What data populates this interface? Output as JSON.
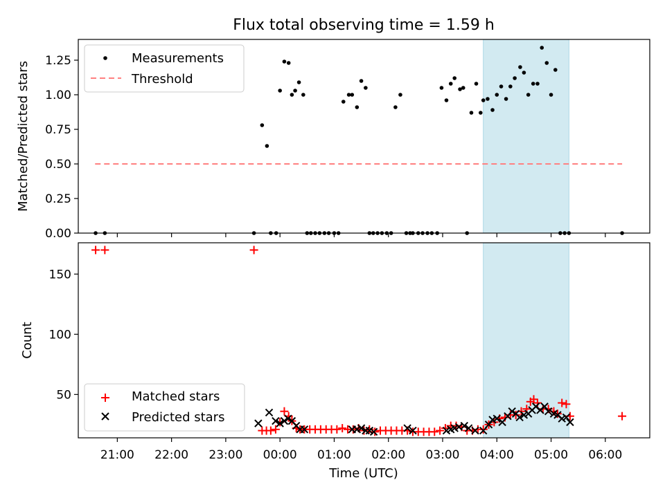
{
  "title": "Flux total observing time = 1.59 h",
  "colors": {
    "measure": "#000000",
    "threshold": "#ff8080",
    "matched": "#ff0000",
    "predicted": "#000000",
    "span": "#add8e6"
  },
  "chart_data": [
    {
      "type": "scatter",
      "ylabel": "Matched/Predicted stars",
      "ylim": [
        0,
        1.4
      ],
      "yticks": [
        0,
        0.25,
        0.5,
        0.75,
        1.0,
        1.25
      ],
      "ytick_labels": [
        "0.00",
        "0.25",
        "0.50",
        "0.75",
        "1.00",
        "1.25"
      ],
      "xlim": [
        20.28,
        30.82
      ],
      "highlight_span": [
        27.75,
        29.33
      ],
      "legend": {
        "location": "upper-left",
        "entries": [
          "Measurements",
          "Threshold"
        ]
      },
      "threshold": {
        "name": "Threshold",
        "x": [
          20.59,
          30.31
        ],
        "value": 0.5
      },
      "series": [
        {
          "name": "Measurements",
          "x": [
            20.6,
            20.77,
            23.52,
            23.67,
            23.83,
            23.76,
            23.93,
            24.0,
            24.08,
            24.16,
            24.22,
            24.28,
            24.35,
            24.43,
            24.5,
            24.57,
            24.65,
            24.73,
            24.82,
            24.9,
            25.0,
            25.08,
            25.17,
            25.27,
            25.33,
            25.42,
            25.5,
            25.58,
            25.65,
            25.72,
            25.8,
            25.88,
            25.97,
            26.05,
            26.13,
            26.22,
            26.33,
            26.4,
            26.45,
            26.55,
            26.63,
            26.72,
            26.8,
            26.9,
            26.98,
            27.07,
            27.15,
            27.22,
            27.32,
            27.38,
            27.45,
            27.53,
            27.62,
            27.7,
            27.75,
            27.83,
            27.92,
            28.0,
            28.08,
            28.17,
            28.25,
            28.33,
            28.43,
            28.5,
            28.58,
            28.67,
            28.75,
            28.83,
            28.92,
            29.0,
            29.08,
            29.17,
            29.25,
            29.33,
            30.31
          ],
          "y": [
            0,
            0,
            0,
            0.78,
            0,
            0.63,
            0,
            1.03,
            1.24,
            1.23,
            1.0,
            1.03,
            1.09,
            1.0,
            0,
            0,
            0,
            0,
            0,
            0,
            0,
            0,
            0.95,
            1.0,
            1.0,
            0.91,
            1.1,
            1.05,
            0,
            0,
            0,
            0,
            0,
            0,
            0.91,
            1.0,
            0,
            0,
            0,
            0,
            0,
            0,
            0,
            0,
            1.05,
            0.96,
            1.08,
            1.12,
            1.04,
            1.05,
            0,
            0.87,
            1.08,
            0.87,
            0.96,
            0.97,
            0.89,
            1.0,
            1.06,
            0.97,
            1.06,
            1.12,
            1.2,
            1.16,
            1.0,
            1.08,
            1.08,
            1.34,
            1.23,
            1.0,
            1.18,
            0,
            0,
            0,
            0
          ]
        }
      ]
    },
    {
      "type": "scatter",
      "xlabel": "Time (UTC)",
      "ylabel": "Count",
      "ylim": [
        14,
        176
      ],
      "yticks": [
        50,
        100,
        150
      ],
      "ytick_labels": [
        "50",
        "100",
        "150"
      ],
      "xlim": [
        20.28,
        30.82
      ],
      "xticks": [
        21,
        22,
        23,
        24,
        25,
        26,
        27,
        28,
        29,
        30
      ],
      "xtick_labels": [
        "21:00",
        "22:00",
        "23:00",
        "00:00",
        "01:00",
        "02:00",
        "03:00",
        "04:00",
        "05:00",
        "06:00"
      ],
      "highlight_span": [
        27.75,
        29.33
      ],
      "legend": {
        "location": "lower-left",
        "entries": [
          "Matched stars",
          "Predicted stars"
        ]
      },
      "series": [
        {
          "name": "Matched stars",
          "marker": "+",
          "x": [
            20.6,
            20.77,
            23.52,
            23.67,
            23.75,
            23.83,
            23.92,
            24.0,
            24.08,
            24.16,
            24.22,
            24.3,
            24.37,
            24.45,
            24.55,
            24.65,
            24.75,
            24.85,
            24.95,
            25.05,
            25.15,
            25.25,
            25.35,
            25.45,
            25.55,
            25.65,
            25.75,
            25.85,
            25.95,
            26.05,
            26.15,
            26.25,
            26.35,
            26.45,
            26.55,
            26.65,
            26.75,
            26.85,
            26.95,
            27.05,
            27.15,
            27.25,
            27.35,
            27.45,
            27.55,
            27.65,
            27.75,
            27.85,
            27.95,
            28.05,
            28.15,
            28.25,
            28.35,
            28.45,
            28.55,
            28.62,
            28.68,
            28.75,
            28.85,
            28.95,
            29.05,
            29.12,
            29.2,
            29.28,
            29.35,
            30.31
          ],
          "y": [
            170,
            170,
            170,
            20,
            20,
            20,
            21,
            27,
            36,
            32,
            28,
            22,
            21,
            21,
            21,
            21,
            21,
            21,
            21,
            21,
            22,
            21,
            21,
            22,
            20,
            21,
            19,
            20,
            20,
            20,
            20,
            20,
            20,
            19,
            19,
            19,
            19,
            19,
            20,
            22,
            24,
            24,
            23,
            20,
            20,
            21,
            21,
            25,
            27,
            30,
            31,
            33,
            33,
            36,
            38,
            44,
            46,
            43,
            38,
            38,
            36,
            34,
            43,
            42,
            32,
            32
          ]
        },
        {
          "name": "Predicted stars",
          "marker": "x",
          "x": [
            23.6,
            23.8,
            23.92,
            24.0,
            24.08,
            24.15,
            24.22,
            24.3,
            24.37,
            24.45,
            25.33,
            25.42,
            25.5,
            25.58,
            25.65,
            25.73,
            26.35,
            26.45,
            27.07,
            27.15,
            27.22,
            27.3,
            27.4,
            27.48,
            27.6,
            27.75,
            27.85,
            27.92,
            28.0,
            28.1,
            28.2,
            28.28,
            28.35,
            28.42,
            28.5,
            28.58,
            28.65,
            28.72,
            28.8,
            28.88,
            28.95,
            29.05,
            29.12,
            29.2,
            29.28,
            29.35
          ],
          "y": [
            26,
            35,
            28,
            26,
            28,
            30,
            28,
            24,
            21,
            21,
            21,
            21,
            22,
            20,
            20,
            19,
            22,
            20,
            20,
            21,
            22,
            23,
            24,
            22,
            20,
            20,
            25,
            29,
            30,
            27,
            32,
            36,
            34,
            31,
            33,
            34,
            37,
            40,
            37,
            40,
            36,
            34,
            33,
            30,
            31,
            27
          ]
        }
      ]
    }
  ]
}
